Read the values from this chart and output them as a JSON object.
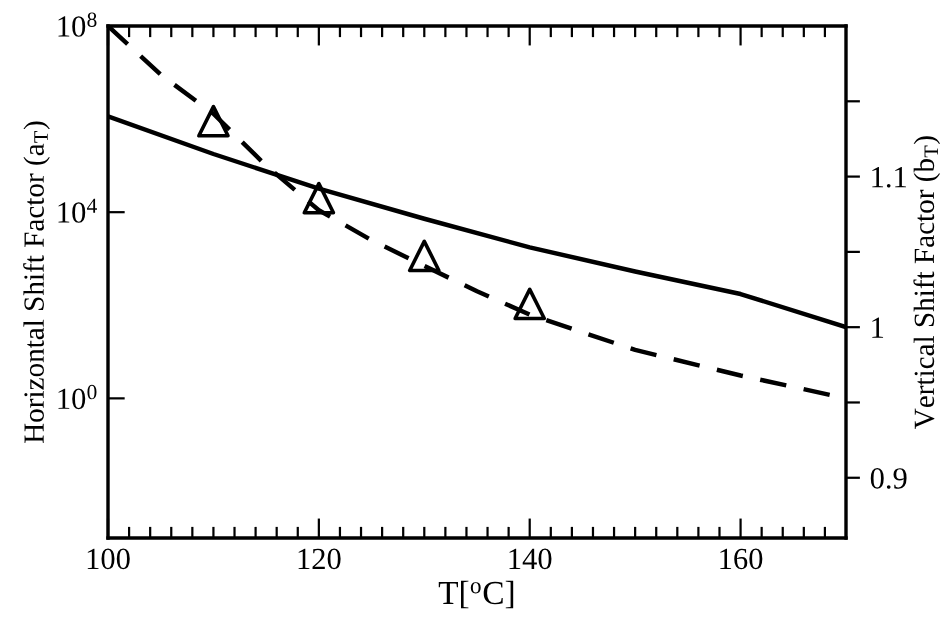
{
  "chart_data": {
    "type": "line",
    "xlabel": "T[$^{o}$C]",
    "ylabel": "Horizontal Shift Factor (a$_{T}$)",
    "y2label": "Vertical Shift Factor (b$_{T}$)",
    "log": "y",
    "grid": false,
    "legend": false,
    "xlim": [
      100,
      170
    ],
    "xticks": [
      100,
      {
        "value": 102,
        "label": null
      },
      {
        "value": 104,
        "label": null
      },
      {
        "value": 106,
        "label": null
      },
      {
        "value": 108,
        "label": null
      },
      {
        "value": 110,
        "label": null
      },
      {
        "value": 112,
        "label": null
      },
      {
        "value": 114,
        "label": null
      },
      {
        "value": 116,
        "label": null
      },
      {
        "value": 118,
        "label": null
      },
      120,
      {
        "value": 122,
        "label": null
      },
      {
        "value": 124,
        "label": null
      },
      {
        "value": 126,
        "label": null
      },
      {
        "value": 128,
        "label": null
      },
      {
        "value": 130,
        "label": null
      },
      {
        "value": 132,
        "label": null
      },
      {
        "value": 134,
        "label": null
      },
      {
        "value": 136,
        "label": null
      },
      {
        "value": 138,
        "label": null
      },
      140,
      {
        "value": 142,
        "label": null
      },
      {
        "value": 144,
        "label": null
      },
      {
        "value": 146,
        "label": null
      },
      {
        "value": 148,
        "label": null
      },
      {
        "value": 150,
        "label": null
      },
      {
        "value": 152,
        "label": null
      },
      {
        "value": 154,
        "label": null
      },
      {
        "value": 156,
        "label": null
      },
      {
        "value": 158,
        "label": null
      },
      160,
      {
        "value": 162,
        "label": null
      },
      {
        "value": 164,
        "label": null
      },
      {
        "value": 166,
        "label": null
      },
      {
        "value": 168,
        "label": null
      }
    ],
    "ylim": [
      0.001,
      100000000
    ],
    "yticks": [
      {
        "value": 1,
        "label": "10$^{0}$"
      },
      {
        "value": 10000,
        "label": "10$^{4}$"
      },
      {
        "value": 100000000,
        "label": "10$^{8}$"
      }
    ],
    "y2lim": [
      0.86,
      1.2
    ],
    "y2ticks": [
      {
        "value": 0.9,
        "label": "0.9"
      },
      {
        "value": 0.95,
        "label": null
      },
      {
        "value": 1,
        "label": "1"
      },
      {
        "value": 1.05,
        "label": null
      },
      {
        "value": 1.1,
        "label": "1.1"
      },
      {
        "value": 1.15,
        "label": null
      }
    ],
    "series": [
      {
        "color": "#000000",
        "line_style": "dashed",
        "marker": "none",
        "x": [
          100,
          105,
          110,
          115,
          120,
          125,
          130,
          135,
          140,
          150,
          160,
          170
        ],
        "values": [
          100000000,
          9000000,
          1300000,
          100000,
          11000,
          2500,
          700,
          200,
          63,
          11,
          3.1,
          1
        ]
      },
      {
        "type": "scatter",
        "color": "#000000",
        "marker": "triangle",
        "x": [
          110,
          120,
          130,
          140
        ],
        "values": [
          900000,
          20000,
          1150,
          107
        ]
      },
      {
        "axis": "y2",
        "color": "#000000",
        "line_style": "solid",
        "marker": "none",
        "x": [
          100,
          110,
          120,
          130,
          140,
          150,
          160,
          170
        ],
        "values": [
          1.14,
          1.115,
          1.092,
          1.072,
          1.053,
          1.037,
          1.022,
          1.0
        ]
      }
    ]
  }
}
